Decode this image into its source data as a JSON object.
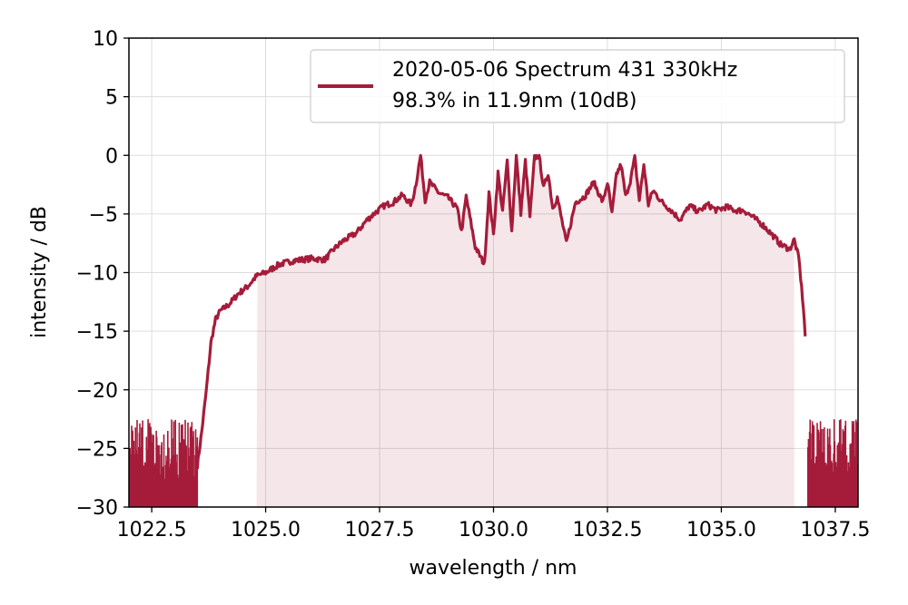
{
  "chart_data": {
    "type": "line",
    "xlabel": "wavelength / nm",
    "ylabel": "intensity / dB",
    "xlim": [
      1022.0,
      1038.0
    ],
    "ylim": [
      -30,
      10
    ],
    "xticks": [
      1022.5,
      1025.0,
      1027.5,
      1030.0,
      1032.5,
      1035.0,
      1037.5
    ],
    "xtick_labels": [
      "1022.5",
      "1025.0",
      "1027.5",
      "1030.0",
      "1032.5",
      "1035.0",
      "1037.5"
    ],
    "yticks": [
      10,
      5,
      0,
      -5,
      -10,
      -15,
      -20,
      -25,
      -30
    ],
    "ytick_labels": [
      "10",
      "5",
      "0",
      "−5",
      "−10",
      "−15",
      "−20",
      "−25",
      "−30"
    ],
    "grid": true,
    "legend_position": "top-right",
    "series": [
      {
        "name": "2020-05-06 Spectrum 431 330kHz",
        "name_line2": "98.3% in 11.9nm (10dB)",
        "color": "#a51c3a",
        "x": [
          1022.0,
          1023.5,
          1023.55,
          1023.6,
          1023.7,
          1023.75,
          1023.8,
          1023.9,
          1024.0,
          1024.2,
          1024.4,
          1024.6,
          1024.8,
          1025.0,
          1025.3,
          1025.6,
          1026.0,
          1026.3,
          1026.5,
          1026.7,
          1027.0,
          1027.2,
          1027.4,
          1027.6,
          1027.8,
          1028.0,
          1028.2,
          1028.3,
          1028.4,
          1028.5,
          1028.6,
          1028.8,
          1029.0,
          1029.2,
          1029.3,
          1029.4,
          1029.6,
          1029.8,
          1029.9,
          1030.0,
          1030.1,
          1030.2,
          1030.3,
          1030.4,
          1030.5,
          1030.6,
          1030.7,
          1030.8,
          1030.9,
          1031.0,
          1031.1,
          1031.2,
          1031.3,
          1031.4,
          1031.6,
          1031.8,
          1032.0,
          1032.2,
          1032.4,
          1032.5,
          1032.6,
          1032.7,
          1032.8,
          1032.9,
          1033.0,
          1033.1,
          1033.2,
          1033.3,
          1033.4,
          1033.5,
          1033.7,
          1033.9,
          1034.1,
          1034.3,
          1034.5,
          1034.7,
          1034.9,
          1035.1,
          1035.3,
          1035.5,
          1035.7,
          1035.9,
          1036.1,
          1036.3,
          1036.5,
          1036.6,
          1036.7,
          1036.8,
          1036.85,
          1036.9,
          1037.0,
          1038.0
        ],
        "y": [
          -26.5,
          -26.5,
          -25.0,
          -23.5,
          -20.0,
          -18.0,
          -16.0,
          -14.0,
          -13.3,
          -12.7,
          -11.8,
          -11.2,
          -10.3,
          -10.0,
          -9.3,
          -9.0,
          -8.8,
          -8.9,
          -8.0,
          -7.3,
          -6.6,
          -5.6,
          -4.9,
          -4.3,
          -4.0,
          -3.4,
          -4.2,
          -2.4,
          0.0,
          -3.8,
          -2.3,
          -3.2,
          -3.6,
          -4.5,
          -6.5,
          -3.5,
          -7.8,
          -9.3,
          -3.2,
          -6.8,
          -1.5,
          -4.8,
          -0.5,
          -6.5,
          0.0,
          -4.9,
          -0.5,
          -5.2,
          -0.2,
          0.0,
          -2.8,
          -1.5,
          -4.5,
          -3.6,
          -7.5,
          -4.0,
          -3.5,
          -2.3,
          -4.0,
          -2.3,
          -5.0,
          -1.6,
          -0.8,
          -3.5,
          -2.2,
          -0.2,
          -3.8,
          -0.8,
          -4.2,
          -3.0,
          -4.0,
          -4.7,
          -5.5,
          -4.3,
          -4.8,
          -4.2,
          -4.7,
          -4.4,
          -4.7,
          -4.7,
          -5.3,
          -5.9,
          -6.7,
          -7.6,
          -8.0,
          -7.2,
          -8.8,
          -13.0,
          -16.0,
          -21.0,
          -26.0,
          -26.0
        ]
      }
    ]
  }
}
